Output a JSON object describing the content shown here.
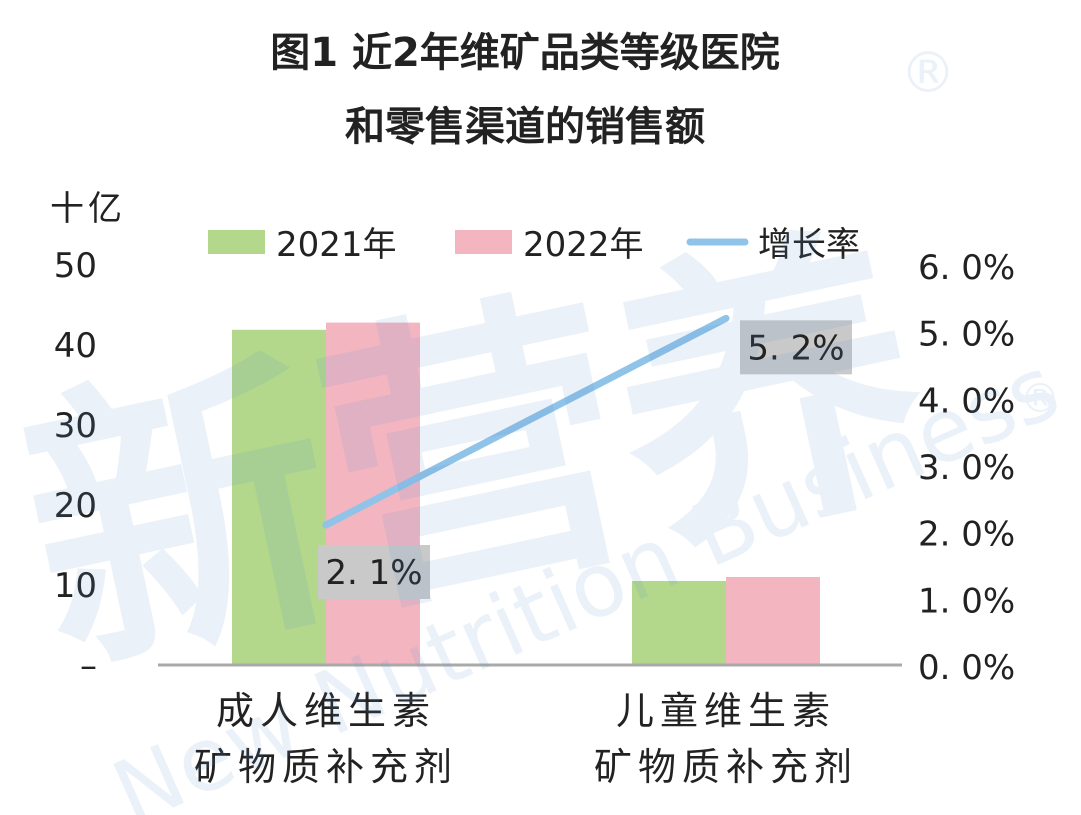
{
  "chart_data": {
    "type": "bar",
    "title": [
      "图1 近2年维矿品类等级医院",
      "和零售渠道的销售额"
    ],
    "y_unit": "十亿",
    "categories": [
      [
        "成人维生素",
        "矿物质补充剂"
      ],
      [
        "儿童维生素",
        "矿物质补充剂"
      ]
    ],
    "series": [
      {
        "name": "2021年",
        "values": [
          41.9,
          10.5
        ],
        "color": "#b3d88c"
      },
      {
        "name": "2022年",
        "values": [
          42.8,
          11.0
        ],
        "color": "#f3b6c1"
      }
    ],
    "line_series": {
      "name": "增长率",
      "values": [
        2.1,
        5.2
      ],
      "labels": [
        "2. 1%",
        "5. 2%"
      ],
      "color": "#8fc3e8",
      "axis": "right"
    },
    "ylim": [
      0,
      50
    ],
    "y_ticks": [
      {
        "value": 0,
        "label": "–"
      },
      {
        "value": 10,
        "label": "10"
      },
      {
        "value": 20,
        "label": "20"
      },
      {
        "value": 30,
        "label": "30"
      },
      {
        "value": 40,
        "label": "40"
      },
      {
        "value": 50,
        "label": "50"
      }
    ],
    "y2lim": [
      0,
      6
    ],
    "y2_ticks": [
      {
        "value": 0,
        "label": "0. 0%"
      },
      {
        "value": 1,
        "label": "1. 0%"
      },
      {
        "value": 2,
        "label": "2. 0%"
      },
      {
        "value": 3,
        "label": "3. 0%"
      },
      {
        "value": 4,
        "label": "4. 0%"
      },
      {
        "value": 5,
        "label": "5. 0%"
      },
      {
        "value": 6,
        "label": "6. 0%"
      }
    ],
    "legend": "top",
    "grid": false,
    "axis_color": "#a9a9a9",
    "label_box_color": "#c9c9c9"
  },
  "watermark": {
    "text_cn": "新营养",
    "text_en": "New Nutrition Business",
    "mark": "®"
  }
}
